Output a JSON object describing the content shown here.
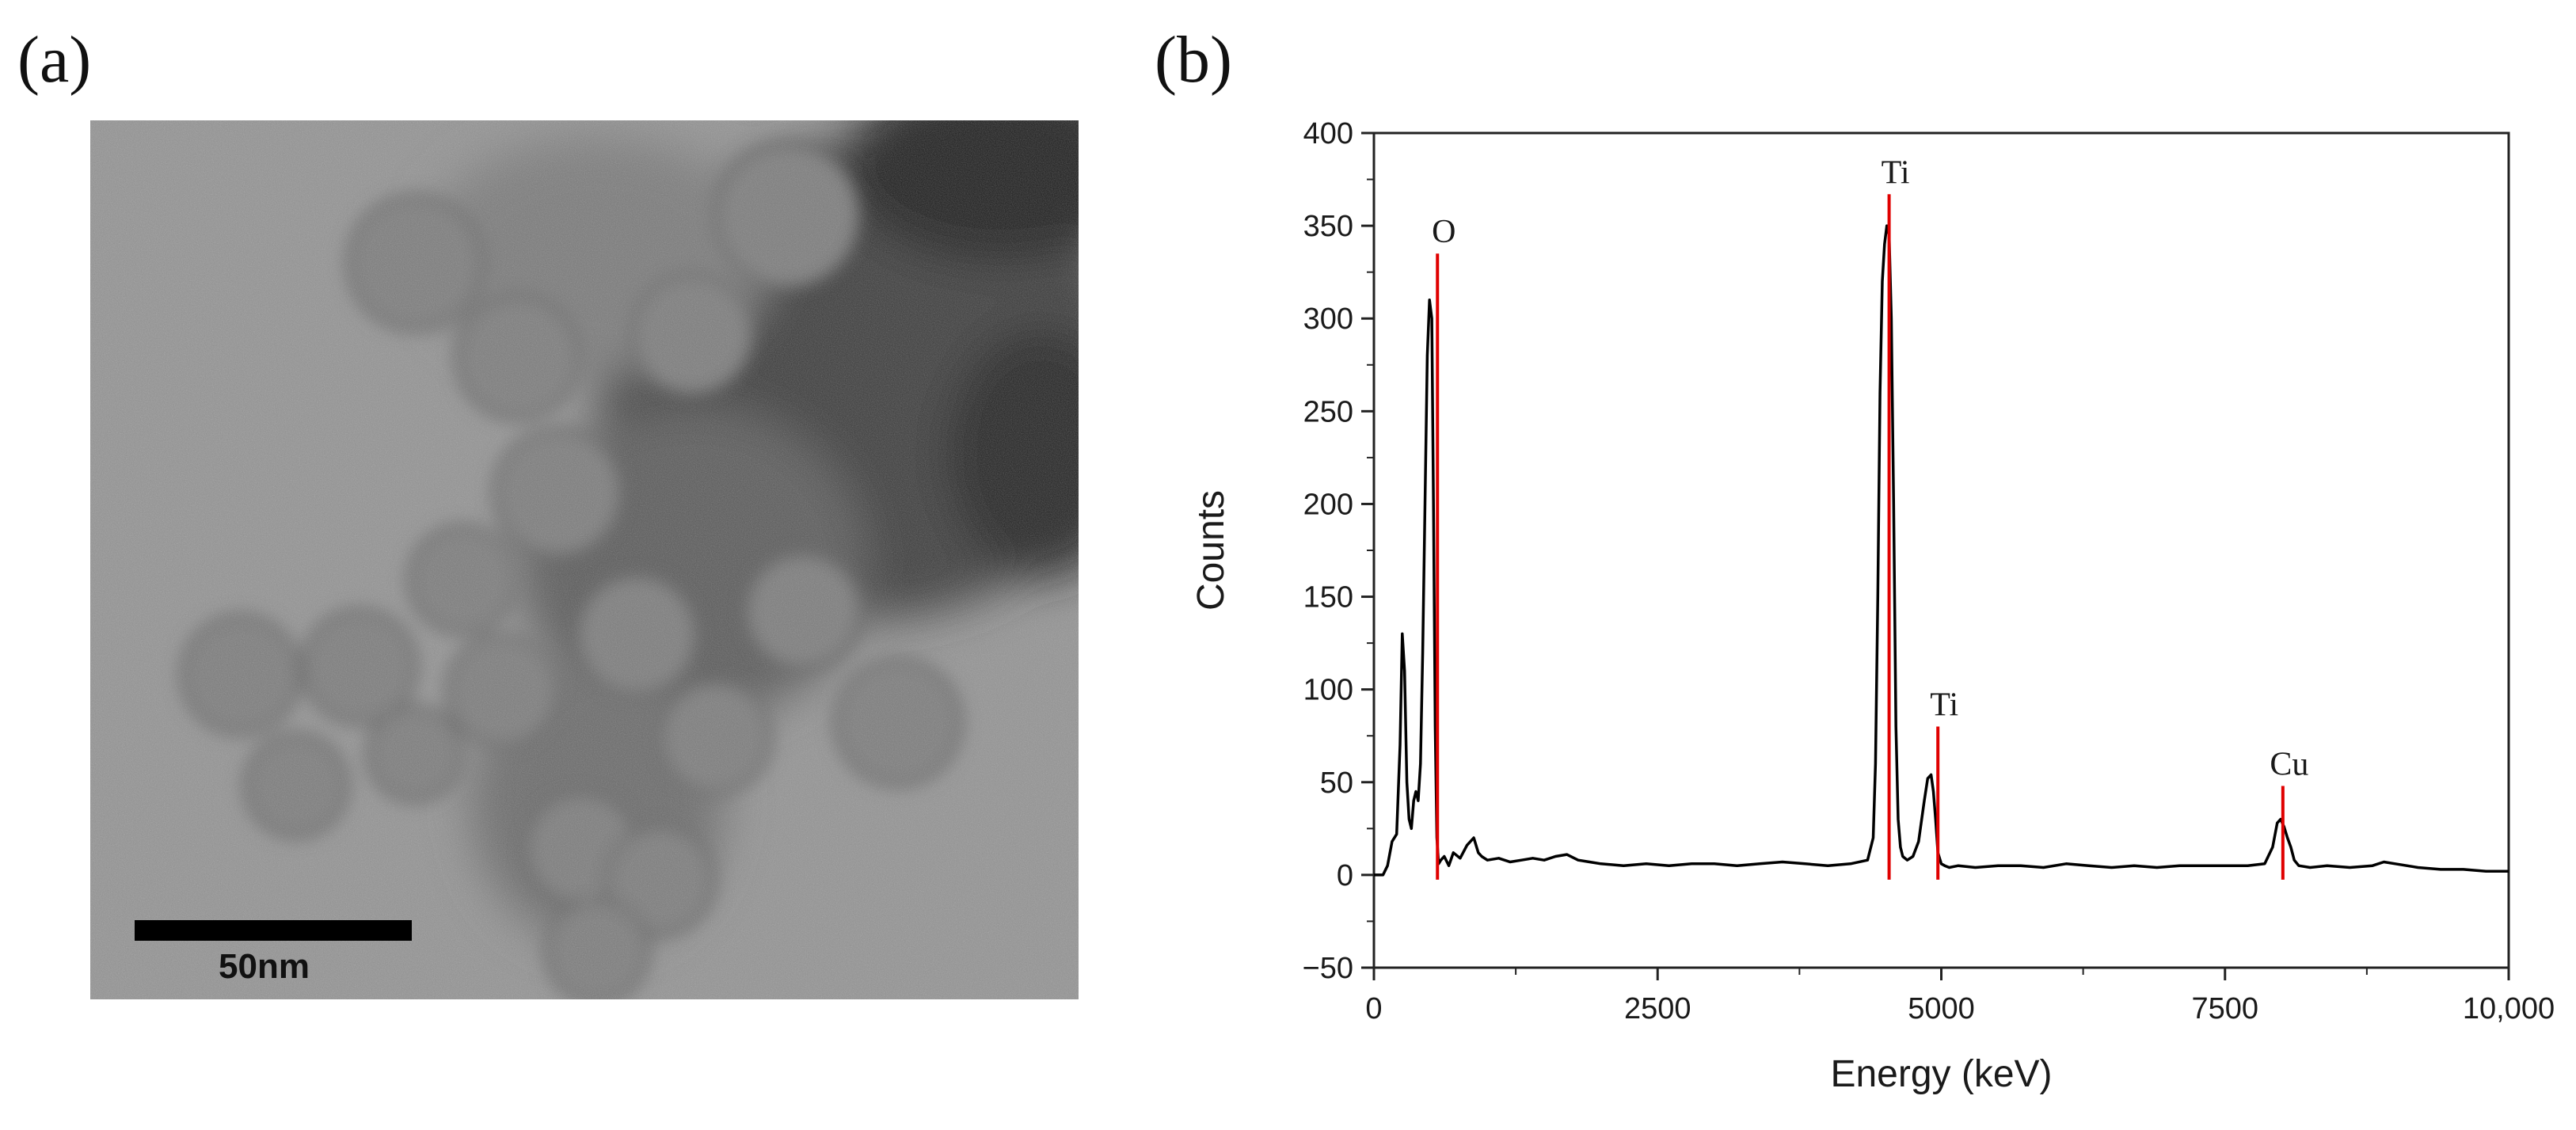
{
  "panels": {
    "a": "(a)",
    "b": "(b)"
  },
  "micrograph": {
    "scale_label": "50nm"
  },
  "chart_data": {
    "type": "line",
    "xlabel": "Energy (keV)",
    "ylabel": "Counts",
    "xlim": [
      0,
      10000
    ],
    "ylim": [
      -50,
      400
    ],
    "x_ticks": [
      0,
      2500,
      5000,
      7500,
      10000
    ],
    "x_tick_labels": [
      "0",
      "2500",
      "5000",
      "7500",
      "10,000"
    ],
    "y_ticks": [
      -50,
      0,
      50,
      100,
      150,
      200,
      250,
      300,
      350,
      400
    ],
    "y_tick_labels": [
      "−50",
      "0",
      "50",
      "100",
      "150",
      "200",
      "250",
      "300",
      "350",
      "400"
    ],
    "grid": false,
    "series": [
      {
        "color": "#000000",
        "x": [
          0,
          80,
          120,
          160,
          200,
          230,
          250,
          270,
          290,
          310,
          330,
          350,
          370,
          390,
          410,
          430,
          450,
          470,
          490,
          510,
          525,
          540,
          555,
          570,
          590,
          620,
          660,
          700,
          760,
          820,
          880,
          920,
          950,
          1000,
          1100,
          1200,
          1300,
          1400,
          1500,
          1600,
          1700,
          1800,
          1900,
          2000,
          2200,
          2400,
          2600,
          2800,
          3000,
          3200,
          3400,
          3600,
          3800,
          4000,
          4200,
          4350,
          4400,
          4420,
          4440,
          4460,
          4480,
          4500,
          4520,
          4540,
          4560,
          4580,
          4600,
          4620,
          4640,
          4660,
          4700,
          4750,
          4800,
          4850,
          4880,
          4910,
          4930,
          4950,
          4970,
          5000,
          5030,
          5070,
          5150,
          5300,
          5500,
          5700,
          5900,
          6100,
          6300,
          6500,
          6700,
          6900,
          7100,
          7300,
          7500,
          7700,
          7850,
          7920,
          7960,
          7990,
          8020,
          8050,
          8080,
          8110,
          8150,
          8250,
          8400,
          8600,
          8800,
          8900,
          9000,
          9200,
          9400,
          9600,
          9800,
          10000
        ],
        "y": [
          0,
          0,
          5,
          18,
          22,
          70,
          130,
          110,
          50,
          30,
          25,
          40,
          45,
          40,
          60,
          120,
          200,
          280,
          310,
          300,
          200,
          80,
          20,
          6,
          8,
          10,
          5,
          12,
          9,
          16,
          20,
          12,
          10,
          8,
          9,
          7,
          8,
          9,
          8,
          10,
          11,
          8,
          7,
          6,
          5,
          6,
          5,
          6,
          6,
          5,
          6,
          7,
          6,
          5,
          6,
          8,
          20,
          60,
          150,
          260,
          320,
          340,
          350,
          345,
          300,
          200,
          80,
          30,
          15,
          10,
          8,
          10,
          18,
          40,
          52,
          54,
          45,
          30,
          12,
          6,
          5,
          4,
          5,
          4,
          5,
          5,
          4,
          6,
          5,
          4,
          5,
          4,
          5,
          5,
          5,
          5,
          6,
          15,
          28,
          30,
          26,
          20,
          15,
          8,
          5,
          4,
          5,
          4,
          5,
          7,
          6,
          4,
          3,
          3,
          2,
          2
        ]
      }
    ],
    "reference_lines": [
      {
        "label": "O",
        "x": 560,
        "y": 335,
        "color": "#e00000"
      },
      {
        "label": "Ti",
        "x": 4540,
        "y": 367,
        "color": "#e00000"
      },
      {
        "label": "Ti",
        "x": 4970,
        "y": 80,
        "color": "#e00000"
      },
      {
        "label": "Cu",
        "x": 8010,
        "y": 48,
        "color": "#e00000"
      }
    ]
  }
}
